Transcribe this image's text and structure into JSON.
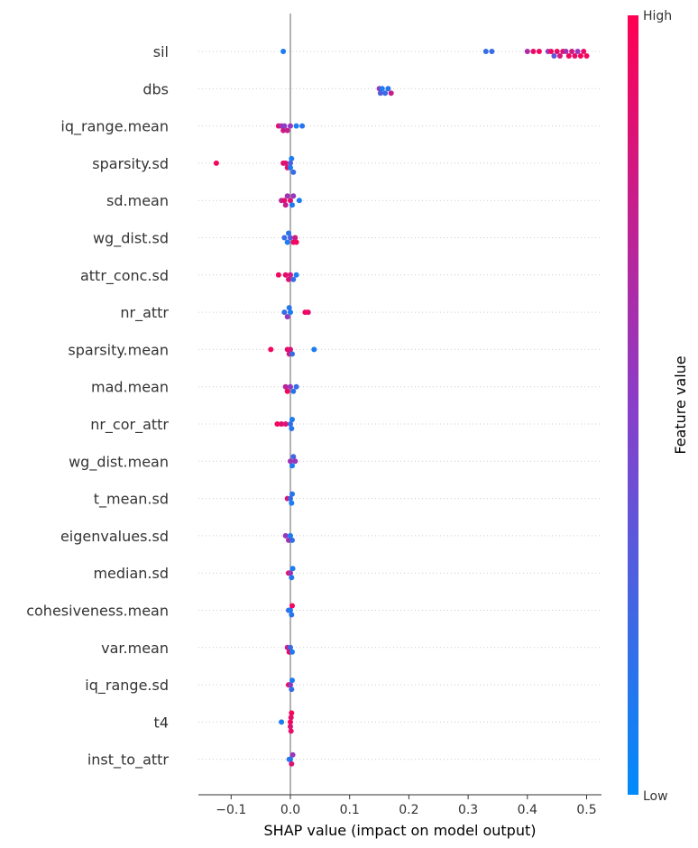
{
  "chart_data": {
    "type": "scatter",
    "subtype": "shap-beeswarm-summary",
    "xlabel": "SHAP value (impact on model output)",
    "xlim": [
      -0.16,
      0.53
    ],
    "xticks": [
      -0.1,
      0.0,
      0.1,
      0.2,
      0.3,
      0.4,
      0.5
    ],
    "xtick_labels": [
      "−0.1",
      "0.0",
      "0.1",
      "0.2",
      "0.3",
      "0.4",
      "0.5"
    ],
    "colorbar": {
      "title": "Feature value",
      "high_label": "High",
      "low_label": "Low",
      "low_color": "#008bfb",
      "high_color": "#ff0052"
    },
    "features": [
      {
        "name": "sil",
        "points": [
          [
            -0.012,
            0.1
          ],
          [
            0.33,
            0.2
          ],
          [
            0.34,
            0.2
          ],
          [
            0.4,
            0.65
          ],
          [
            0.41,
            0.9
          ],
          [
            0.42,
            0.95
          ],
          [
            0.435,
            0.55
          ],
          [
            0.44,
            0.95
          ],
          [
            0.445,
            0.35
          ],
          [
            0.45,
            0.9
          ],
          [
            0.455,
            0.8
          ],
          [
            0.46,
            0.9
          ],
          [
            0.465,
            0.6
          ],
          [
            0.47,
            0.95
          ],
          [
            0.475,
            0.8
          ],
          [
            0.48,
            0.9
          ],
          [
            0.485,
            0.55
          ],
          [
            0.49,
            0.95
          ],
          [
            0.495,
            0.9
          ],
          [
            0.5,
            0.95
          ]
        ]
      },
      {
        "name": "dbs",
        "points": [
          [
            0.15,
            0.55
          ],
          [
            0.155,
            0.1
          ],
          [
            0.16,
            0.2
          ],
          [
            0.165,
            0.15
          ],
          [
            0.17,
            0.75
          ],
          [
            0.152,
            0.3
          ]
        ]
      },
      {
        "name": "iq_range.mean",
        "points": [
          [
            -0.02,
            0.9
          ],
          [
            -0.015,
            0.6
          ],
          [
            -0.01,
            0.5
          ],
          [
            -0.005,
            0.75
          ],
          [
            0.0,
            0.55
          ],
          [
            0.01,
            0.1
          ],
          [
            0.02,
            0.15
          ],
          [
            -0.012,
            0.8
          ]
        ]
      },
      {
        "name": "sparsity.sd",
        "points": [
          [
            -0.125,
            0.95
          ],
          [
            -0.012,
            0.9
          ],
          [
            -0.008,
            0.85
          ],
          [
            -0.005,
            0.9
          ],
          [
            0.0,
            0.3
          ],
          [
            0.002,
            0.1
          ],
          [
            0.005,
            0.2
          ],
          [
            0.0,
            0.1
          ]
        ]
      },
      {
        "name": "sd.mean",
        "points": [
          [
            -0.015,
            0.7
          ],
          [
            -0.01,
            0.9
          ],
          [
            -0.005,
            0.6
          ],
          [
            0.0,
            0.85
          ],
          [
            0.003,
            0.1
          ],
          [
            0.015,
            0.1
          ],
          [
            -0.008,
            0.75
          ],
          [
            0.005,
            0.55
          ]
        ]
      },
      {
        "name": "wg_dist.sd",
        "points": [
          [
            -0.01,
            0.2
          ],
          [
            -0.005,
            0.1
          ],
          [
            0.0,
            0.3
          ],
          [
            0.005,
            0.9
          ],
          [
            0.01,
            0.95
          ],
          [
            -0.003,
            0.15
          ],
          [
            0.008,
            0.8
          ]
        ]
      },
      {
        "name": "attr_conc.sd",
        "points": [
          [
            -0.02,
            0.95
          ],
          [
            -0.008,
            0.9
          ],
          [
            0.0,
            0.8
          ],
          [
            0.005,
            0.2
          ],
          [
            0.01,
            0.1
          ],
          [
            -0.003,
            0.85
          ]
        ]
      },
      {
        "name": "nr_attr",
        "points": [
          [
            -0.01,
            0.2
          ],
          [
            -0.005,
            0.55
          ],
          [
            0.0,
            0.1
          ],
          [
            0.025,
            0.95
          ],
          [
            0.03,
            0.9
          ],
          [
            -0.002,
            0.15
          ]
        ]
      },
      {
        "name": "sparsity.mean",
        "points": [
          [
            -0.033,
            0.95
          ],
          [
            -0.005,
            0.9
          ],
          [
            0.0,
            0.85
          ],
          [
            0.003,
            0.2
          ],
          [
            0.04,
            0.1
          ],
          [
            -0.002,
            0.8
          ]
        ]
      },
      {
        "name": "mad.mean",
        "points": [
          [
            -0.008,
            0.7
          ],
          [
            -0.005,
            0.95
          ],
          [
            0.0,
            0.55
          ],
          [
            0.005,
            0.15
          ],
          [
            0.01,
            0.2
          ]
        ]
      },
      {
        "name": "nr_cor_attr",
        "points": [
          [
            -0.022,
            0.95
          ],
          [
            -0.015,
            0.9
          ],
          [
            -0.008,
            0.85
          ],
          [
            0.0,
            0.2
          ],
          [
            0.002,
            0.15
          ],
          [
            0.003,
            0.1
          ]
        ]
      },
      {
        "name": "wg_dist.mean",
        "points": [
          [
            0.0,
            0.6
          ],
          [
            0.003,
            0.1
          ],
          [
            0.005,
            0.25
          ],
          [
            0.008,
            0.55
          ]
        ]
      },
      {
        "name": "t_mean.sd",
        "points": [
          [
            -0.005,
            0.85
          ],
          [
            0.0,
            0.2
          ],
          [
            0.002,
            0.1
          ],
          [
            0.003,
            0.15
          ]
        ]
      },
      {
        "name": "eigenvalues.sd",
        "points": [
          [
            -0.008,
            0.55
          ],
          [
            -0.003,
            0.6
          ],
          [
            0.0,
            0.1
          ],
          [
            0.003,
            0.2
          ]
        ]
      },
      {
        "name": "median.sd",
        "points": [
          [
            -0.003,
            0.9
          ],
          [
            0.0,
            0.6
          ],
          [
            0.002,
            0.15
          ],
          [
            0.004,
            0.1
          ]
        ]
      },
      {
        "name": "cohesiveness.mean",
        "points": [
          [
            -0.003,
            0.2
          ],
          [
            0.0,
            0.1
          ],
          [
            0.003,
            0.95
          ],
          [
            0.002,
            0.15
          ]
        ]
      },
      {
        "name": "var.mean",
        "points": [
          [
            -0.005,
            0.75
          ],
          [
            -0.002,
            0.95
          ],
          [
            0.0,
            0.2
          ],
          [
            0.003,
            0.1
          ]
        ]
      },
      {
        "name": "iq_range.sd",
        "points": [
          [
            -0.003,
            0.95
          ],
          [
            0.0,
            0.55
          ],
          [
            0.003,
            0.1
          ],
          [
            0.002,
            0.2
          ]
        ]
      },
      {
        "name": "t4",
        "points": [
          [
            -0.015,
            0.1
          ],
          [
            0.0,
            0.95
          ],
          [
            0.001,
            0.9
          ],
          [
            0.002,
            0.95
          ],
          [
            0.0,
            0.85
          ],
          [
            0.001,
            0.9
          ]
        ]
      },
      {
        "name": "inst_to_attr",
        "points": [
          [
            -0.002,
            0.2
          ],
          [
            0.0,
            0.1
          ],
          [
            0.002,
            0.85
          ],
          [
            0.004,
            0.55
          ]
        ]
      }
    ]
  }
}
